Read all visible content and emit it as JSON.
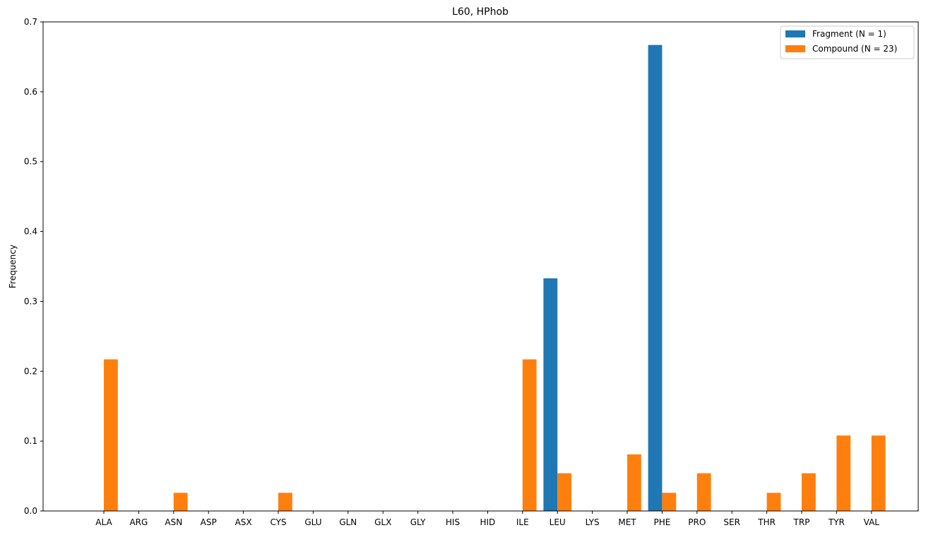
{
  "chart_data": {
    "type": "bar",
    "title": "L60, HPhob",
    "xlabel": "",
    "ylabel": "Frequency",
    "ylim": [
      0,
      0.7
    ],
    "yticks": [
      "0.0",
      "0.1",
      "0.2",
      "0.3",
      "0.4",
      "0.5",
      "0.6",
      "0.7"
    ],
    "grid": false,
    "legend_position": "top-right",
    "categories": [
      "ALA",
      "ARG",
      "ASN",
      "ASP",
      "ASX",
      "CYS",
      "GLU",
      "GLN",
      "GLX",
      "GLY",
      "HIS",
      "HID",
      "ILE",
      "LEU",
      "LYS",
      "MET",
      "PHE",
      "PRO",
      "SER",
      "THR",
      "TRP",
      "TYR",
      "VAL"
    ],
    "series": [
      {
        "name": "Fragment (N = 1)",
        "color": "#1f77b4",
        "values": [
          0,
          0,
          0,
          0,
          0,
          0,
          0,
          0,
          0,
          0,
          0,
          0,
          0,
          0.333,
          0,
          0,
          0.667,
          0,
          0,
          0,
          0,
          0,
          0
        ]
      },
      {
        "name": "Compound (N = 23)",
        "color": "#ff7f0e",
        "values": [
          0.217,
          0,
          0.026,
          0,
          0,
          0.026,
          0,
          0,
          0,
          0,
          0,
          0,
          0.217,
          0.054,
          0,
          0.081,
          0.026,
          0.054,
          0,
          0.026,
          0.054,
          0.108,
          0.108
        ]
      }
    ]
  }
}
